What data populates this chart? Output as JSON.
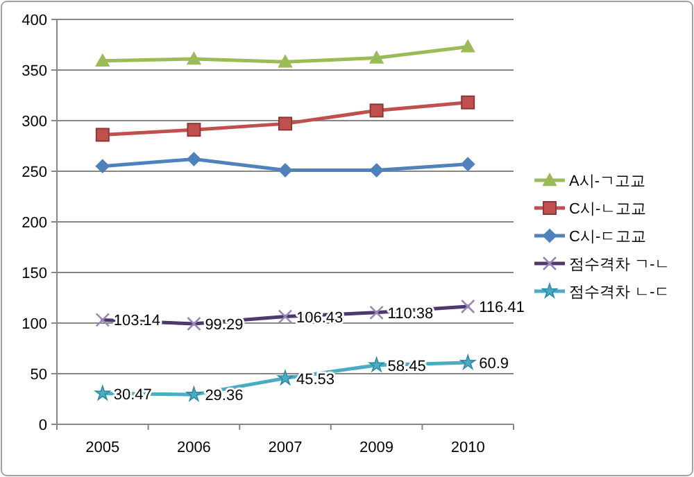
{
  "chart_data": {
    "type": "line",
    "categories": [
      "2005",
      "2006",
      "2007",
      "2009",
      "2010"
    ],
    "ylim": [
      0,
      400
    ],
    "yticks": [
      0,
      50,
      100,
      150,
      200,
      250,
      300,
      350,
      400
    ],
    "grid": "y",
    "legend": "right",
    "series": [
      {
        "name": "A시-ㄱ고교",
        "color": "#9bbb59",
        "marker": "triangle",
        "values": [
          359,
          361,
          358,
          362,
          373
        ]
      },
      {
        "name": "C시-ㄴ고교",
        "color": "#c0504d",
        "marker": "square",
        "values": [
          286,
          291,
          297,
          310,
          318
        ]
      },
      {
        "name": "C시-ㄷ고교",
        "color": "#4f81bd",
        "marker": "diamond",
        "values": [
          255,
          262,
          251,
          251,
          257
        ]
      },
      {
        "name": "점수격차 ㄱ-ㄴ",
        "color": "#4b3a6b",
        "marker": "cross",
        "values": [
          103.14,
          99.29,
          106.43,
          110.38,
          116.41
        ],
        "value_labels": [
          "103.14",
          "99.29",
          "106.43",
          "110.38",
          "116.41"
        ]
      },
      {
        "name": "점수격차 ㄴ-ㄷ",
        "color": "#4bacc6",
        "marker": "star",
        "values": [
          30.47,
          29.36,
          45.53,
          58.45,
          60.9
        ],
        "value_labels": [
          "30.47",
          "29.36",
          "45.53",
          "58.45",
          "60.9"
        ]
      }
    ]
  }
}
